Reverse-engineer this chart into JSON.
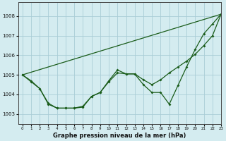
{
  "xlabel": "Graphe pression niveau de la mer (hPa)",
  "bg_color": "#d4ecf0",
  "grid_color": "#aacdd6",
  "line_color": "#1a5c1a",
  "xlim": [
    -0.5,
    23
  ],
  "ylim": [
    1002.5,
    1008.7
  ],
  "yticks": [
    1003,
    1004,
    1005,
    1006,
    1007,
    1008
  ],
  "xticks": [
    0,
    1,
    2,
    3,
    4,
    5,
    6,
    7,
    8,
    9,
    10,
    11,
    12,
    13,
    14,
    15,
    16,
    17,
    18,
    19,
    20,
    21,
    22,
    23
  ],
  "series_zigzag": {
    "x": [
      0,
      1,
      2,
      3,
      4,
      5,
      6,
      7,
      8,
      9,
      10,
      11,
      12,
      13,
      14,
      15,
      16,
      17,
      18,
      19,
      20,
      21,
      22,
      23
    ],
    "y": [
      1005.0,
      1004.65,
      1004.3,
      1003.55,
      1003.3,
      1003.3,
      1003.3,
      1003.4,
      1003.9,
      1004.1,
      1004.7,
      1005.25,
      1005.05,
      1005.05,
      1004.5,
      1004.1,
      1004.1,
      1003.5,
      1004.45,
      1005.4,
      1006.3,
      1007.1,
      1007.6,
      1008.1
    ]
  },
  "series_smooth": {
    "x": [
      0,
      1,
      2,
      3,
      4,
      5,
      6,
      7,
      8,
      9,
      10,
      11,
      12,
      13,
      14,
      15,
      16,
      17,
      18,
      19,
      20,
      21,
      22,
      23
    ],
    "y": [
      1005.0,
      1004.7,
      1004.3,
      1003.5,
      1003.3,
      1003.3,
      1003.3,
      1003.35,
      1003.9,
      1004.1,
      1004.65,
      1005.1,
      1005.05,
      1005.05,
      1004.75,
      1004.5,
      1004.75,
      1005.1,
      1005.4,
      1005.7,
      1006.05,
      1006.5,
      1007.0,
      1008.1
    ]
  },
  "series_diag": {
    "x": [
      0,
      23
    ],
    "y": [
      1005.0,
      1008.1
    ]
  }
}
